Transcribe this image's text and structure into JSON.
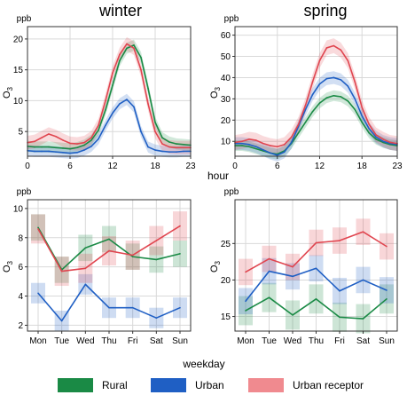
{
  "colors": {
    "rural": "#1a8a45",
    "urban": "#1f5fc4",
    "urban_receptor": "#e0454f"
  },
  "legend": [
    {
      "key": "rural",
      "label": "Rural"
    },
    {
      "key": "urban",
      "label": "Urban"
    },
    {
      "key": "urban_receptor",
      "label": "Urban receptor"
    }
  ],
  "shared_labels": {
    "hour": "hour",
    "weekday": "weekday"
  },
  "chart_data": [
    {
      "type": "line",
      "panel": "winter-diurnal",
      "title": "winter",
      "unit": "ppb",
      "ylabel": "O3",
      "xlim": [
        0,
        23
      ],
      "xticks": [
        0,
        6,
        12,
        18,
        23
      ],
      "ylim": [
        1,
        22
      ],
      "yticks": [
        5,
        10,
        15,
        20
      ],
      "x": [
        0,
        1,
        2,
        3,
        4,
        5,
        6,
        7,
        8,
        9,
        10,
        11,
        12,
        13,
        14,
        15,
        16,
        17,
        18,
        19,
        20,
        21,
        22,
        23
      ],
      "series": [
        {
          "key": "rural",
          "name": "Rural",
          "values": [
            2.6,
            2.5,
            2.5,
            2.5,
            2.4,
            2.3,
            2.2,
            2.4,
            2.8,
            3.6,
            5.2,
            8.5,
            12.5,
            16.5,
            18.5,
            19.0,
            17.0,
            12.0,
            6.5,
            4.0,
            3.3,
            3.0,
            2.9,
            2.8
          ],
          "band": 0.9
        },
        {
          "key": "urban",
          "name": "Urban",
          "values": [
            1.9,
            1.8,
            1.8,
            1.8,
            1.7,
            1.6,
            1.5,
            1.6,
            2.0,
            2.6,
            3.8,
            6.0,
            8.0,
            9.5,
            10.2,
            9.0,
            5.0,
            2.5,
            2.0,
            1.8,
            1.7,
            1.7,
            1.8,
            1.8
          ],
          "band": 0.9
        },
        {
          "key": "urban_receptor",
          "name": "Urban receptor",
          "values": [
            3.2,
            3.4,
            4.0,
            4.6,
            4.2,
            3.6,
            3.1,
            3.0,
            3.2,
            4.0,
            6.0,
            10.0,
            14.5,
            17.5,
            19.2,
            18.5,
            15.0,
            9.5,
            5.0,
            3.0,
            2.5,
            2.4,
            2.4,
            2.4
          ],
          "band": 1.1
        }
      ]
    },
    {
      "type": "line",
      "panel": "spring-diurnal",
      "title": "spring",
      "unit": "ppb",
      "ylabel": "O3",
      "xlim": [
        0,
        23
      ],
      "xticks": [
        0,
        6,
        12,
        18,
        23
      ],
      "ylim": [
        3,
        64
      ],
      "yticks": [
        10,
        20,
        30,
        40,
        50,
        60
      ],
      "x": [
        0,
        1,
        2,
        3,
        4,
        5,
        6,
        7,
        8,
        9,
        10,
        11,
        12,
        13,
        14,
        15,
        16,
        17,
        18,
        19,
        20,
        21,
        22,
        23
      ],
      "series": [
        {
          "key": "rural",
          "name": "Rural",
          "values": [
            8,
            8,
            7.5,
            6.5,
            5.5,
            4.5,
            4,
            5.5,
            9,
            14,
            19,
            24,
            28,
            30.5,
            31.5,
            31,
            29,
            25,
            19,
            14,
            11,
            9.5,
            8.5,
            8
          ],
          "band": 2.5
        },
        {
          "key": "urban",
          "name": "Urban",
          "values": [
            9,
            9,
            8.5,
            7.5,
            6,
            4.5,
            3.5,
            5,
            9.5,
            17,
            25,
            32,
            37,
            39.5,
            40,
            39,
            36,
            30,
            22,
            16,
            12,
            10,
            9,
            8.5
          ],
          "band": 3.0
        },
        {
          "key": "urban_receptor",
          "name": "Urban receptor",
          "values": [
            9.5,
            10,
            11,
            10.5,
            9,
            8,
            7.5,
            8.5,
            12,
            18,
            27,
            38,
            48,
            54,
            55,
            53,
            48,
            38,
            26,
            18,
            13,
            11,
            9.5,
            9
          ],
          "band": 3.5
        }
      ]
    },
    {
      "type": "line",
      "panel": "winter-weekly",
      "unit": "ppb",
      "ylabel": "O3",
      "categories": [
        "Mon",
        "Tue",
        "Wed",
        "Thu",
        "Fri",
        "Sat",
        "Sun"
      ],
      "ylim": [
        1.6,
        10.6
      ],
      "yticks": [
        2,
        4,
        6,
        8,
        10
      ],
      "series": [
        {
          "key": "rural",
          "name": "Rural",
          "values": [
            8.7,
            5.8,
            7.3,
            7.9,
            6.7,
            6.5,
            6.9
          ],
          "band": 0.9
        },
        {
          "key": "urban",
          "name": "Urban",
          "values": [
            4.2,
            2.3,
            4.8,
            3.2,
            3.2,
            2.5,
            3.2
          ],
          "band": 0.7
        },
        {
          "key": "urban_receptor",
          "name": "Urban receptor",
          "values": [
            8.6,
            5.7,
            5.9,
            7.1,
            6.8,
            7.8,
            8.8
          ],
          "band": 1.0
        }
      ]
    },
    {
      "type": "line",
      "panel": "spring-weekly",
      "unit": "ppb",
      "ylabel": "O3",
      "categories": [
        "Mon",
        "Tue",
        "Wed",
        "Thu",
        "Fri",
        "Sat",
        "Sun"
      ],
      "ylim": [
        13,
        31
      ],
      "yticks": [
        15,
        20,
        25
      ],
      "series": [
        {
          "key": "rural",
          "name": "Rural",
          "values": [
            15.8,
            17.6,
            15.2,
            17.4,
            14.9,
            14.7,
            17.4
          ],
          "band": 2.0
        },
        {
          "key": "urban",
          "name": "Urban",
          "values": [
            17.1,
            21.2,
            20.5,
            21.6,
            18.5,
            20.0,
            18.6
          ],
          "band": 1.8
        },
        {
          "key": "urban_receptor",
          "name": "Urban receptor",
          "values": [
            21.1,
            22.9,
            21.8,
            25.1,
            25.4,
            26.6,
            24.6
          ],
          "band": 1.8
        }
      ]
    }
  ]
}
